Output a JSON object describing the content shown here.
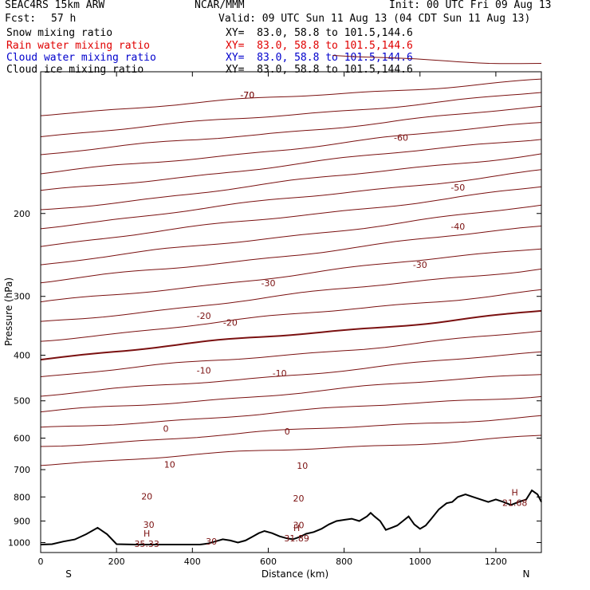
{
  "header": {
    "model": "SEAC4RS 15km ARW",
    "center": "NCAR/MMM",
    "init": "Init: 00 UTC Fri 09 Aug 13",
    "fcst_label": "Fcst:",
    "fcst_value": "57 h",
    "valid": "Valid: 09 UTC Sun 11 Aug 13 (04 CDT Sun 11 Aug 13)"
  },
  "legend": [
    {
      "name": "Snow mixing ratio",
      "xy": "XY=  83.0, 58.8 to 101.5,144.6",
      "color": "#000000"
    },
    {
      "name": "Rain water mixing ratio",
      "xy": "XY=  83.0, 58.8 to 101.5,144.6",
      "color": "#e00000"
    },
    {
      "name": "Cloud water mixing ratio",
      "xy": "XY=  83.0, 58.8 to 101.5,144.6",
      "color": "#0000cc"
    },
    {
      "name": "Cloud ice mixing ratio",
      "xy": "XY=  83.0, 58.8 to 101.5,144.6",
      "color": "#000000"
    }
  ],
  "chart_data": {
    "type": "line",
    "xlabel": "Distance (km)",
    "ylabel": "Pressure (hPa)",
    "x_range": [
      0,
      1320
    ],
    "y_range": [
      1050,
      100
    ],
    "y_log": true,
    "x_ticks": [
      "0",
      "200",
      "400",
      "600",
      "800",
      "1000",
      "1200"
    ],
    "x_tick_values": [
      0,
      200,
      400,
      600,
      800,
      1000,
      1200
    ],
    "y_ticks": [
      "200",
      "300",
      "400",
      "500",
      "600",
      "700",
      "800",
      "900",
      "1000"
    ],
    "y_tick_values": [
      200,
      300,
      400,
      500,
      600,
      700,
      800,
      900,
      1000
    ],
    "end_labels": [
      "S",
      "N"
    ],
    "contour_color": "#7a1010",
    "terrain_color": "#000000",
    "isotherm_interval": 5,
    "isotherm_values": [
      -70,
      -65,
      -60,
      -55,
      -50,
      -45,
      -40,
      -35,
      -30,
      -25,
      -20,
      -15,
      -10,
      -5,
      0,
      5,
      10,
      15,
      20,
      25,
      30
    ],
    "isotherm_start_p": [
      88,
      123,
      137,
      150,
      165,
      180,
      197,
      214,
      234,
      257,
      281,
      310,
      341,
      372,
      406,
      444,
      489,
      530,
      573,
      624,
      681
    ],
    "isotherm_end_p": [
      96,
      104,
      111,
      119,
      128,
      138,
      149,
      162,
      176,
      193,
      213,
      236,
      261,
      291,
      323,
      357,
      395,
      437,
      486,
      538,
      594
    ],
    "contour_labels": [
      {
        "text": "-70",
        "x": 545,
        "p": 112
      },
      {
        "text": "-70",
        "x": 545,
        "p": 112
      },
      {
        "text": "-60",
        "x": 950,
        "p": 138
      },
      {
        "text": "-50",
        "x": 1100,
        "p": 176
      },
      {
        "text": "-40",
        "x": 1100,
        "p": 213
      },
      {
        "text": "-30",
        "x": 600,
        "p": 281
      },
      {
        "text": "-30",
        "x": 1000,
        "p": 257
      },
      {
        "text": "-20",
        "x": 500,
        "p": 341
      },
      {
        "text": "-20",
        "x": 430,
        "p": 330
      },
      {
        "text": "-10",
        "x": 430,
        "p": 431
      },
      {
        "text": "-10",
        "x": 630,
        "p": 437
      },
      {
        "text": "0",
        "x": 330,
        "p": 573
      },
      {
        "text": "0",
        "x": 650,
        "p": 580
      },
      {
        "text": "10",
        "x": 340,
        "p": 683
      },
      {
        "text": "10",
        "x": 690,
        "p": 686
      },
      {
        "text": "20",
        "x": 280,
        "p": 797
      },
      {
        "text": "20",
        "x": 680,
        "p": 806
      },
      {
        "text": "30",
        "x": 285,
        "p": 916
      },
      {
        "text": "30",
        "x": 680,
        "p": 918
      },
      {
        "text": "30",
        "x": 450,
        "p": 994
      }
    ],
    "highs": [
      {
        "label": "H",
        "value": "35.33",
        "x": 280,
        "p": 995
      },
      {
        "label": "H",
        "value": "31.89",
        "x": 675,
        "p": 968
      },
      {
        "label": "H",
        "value": "21.68",
        "x": 1250,
        "p": 814
      }
    ],
    "terrain": [
      [
        0,
        1010
      ],
      [
        30,
        1008
      ],
      [
        60,
        995
      ],
      [
        90,
        985
      ],
      [
        120,
        960
      ],
      [
        150,
        930
      ],
      [
        175,
        960
      ],
      [
        200,
        1008
      ],
      [
        250,
        1010
      ],
      [
        300,
        1010
      ],
      [
        350,
        1010
      ],
      [
        400,
        1010
      ],
      [
        420,
        1010
      ],
      [
        440,
        1005
      ],
      [
        460,
        995
      ],
      [
        480,
        984
      ],
      [
        500,
        990
      ],
      [
        520,
        1000
      ],
      [
        540,
        990
      ],
      [
        560,
        970
      ],
      [
        575,
        955
      ],
      [
        590,
        945
      ],
      [
        610,
        955
      ],
      [
        630,
        970
      ],
      [
        650,
        980
      ],
      [
        665,
        984
      ],
      [
        680,
        975
      ],
      [
        700,
        958
      ],
      [
        720,
        950
      ],
      [
        740,
        935
      ],
      [
        760,
        915
      ],
      [
        780,
        900
      ],
      [
        800,
        895
      ],
      [
        820,
        890
      ],
      [
        840,
        900
      ],
      [
        860,
        880
      ],
      [
        870,
        865
      ],
      [
        880,
        880
      ],
      [
        895,
        900
      ],
      [
        910,
        940
      ],
      [
        925,
        930
      ],
      [
        940,
        920
      ],
      [
        955,
        900
      ],
      [
        970,
        880
      ],
      [
        985,
        915
      ],
      [
        1000,
        935
      ],
      [
        1015,
        920
      ],
      [
        1030,
        890
      ],
      [
        1050,
        850
      ],
      [
        1070,
        825
      ],
      [
        1085,
        820
      ],
      [
        1100,
        800
      ],
      [
        1120,
        790
      ],
      [
        1140,
        800
      ],
      [
        1160,
        810
      ],
      [
        1180,
        820
      ],
      [
        1200,
        810
      ],
      [
        1220,
        820
      ],
      [
        1240,
        832
      ],
      [
        1260,
        820
      ],
      [
        1280,
        810
      ],
      [
        1295,
        775
      ],
      [
        1310,
        790
      ],
      [
        1320,
        820
      ]
    ]
  }
}
